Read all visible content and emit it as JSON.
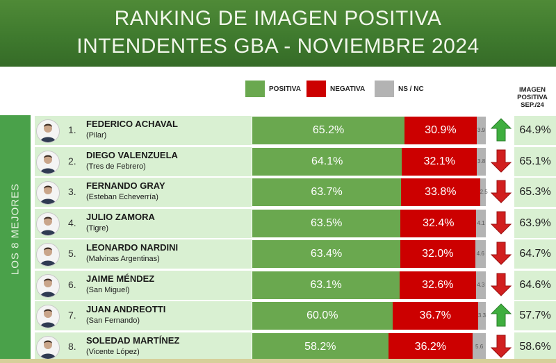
{
  "header": {
    "title_line1": "RANKING DE IMAGEN POSITIVA",
    "title_line2": "INTENDENTES GBA - NOVIEMBRE 2024"
  },
  "legend": {
    "positiva": "POSITIVA",
    "negativa": "NEGATIVA",
    "nsnc": "NS / NC"
  },
  "prev_header": [
    "IMAGEN",
    "POSITIVA",
    "SEP./24"
  ],
  "sidebar_label": "LOS 8 MEJORES",
  "colors": {
    "positiva": "#6aa84f",
    "negativa": "#cc0000",
    "nsnc": "#b3b3b3",
    "up_arrow": "#3fae3f",
    "down_arrow": "#d11f1f",
    "header_green": "#3f7a2e",
    "sidebar_green": "#4aa14a",
    "row_bg": "#d9f0d2"
  },
  "chart_data": {
    "type": "bar",
    "stacked": true,
    "orientation": "horizontal",
    "title": "RANKING DE IMAGEN POSITIVA INTENDENTES GBA - NOVIEMBRE 2024",
    "xlim": [
      0,
      100
    ],
    "legend": [
      "POSITIVA",
      "NEGATIVA",
      "NS / NC"
    ],
    "categories": [
      "FEDERICO ACHAVAL",
      "DIEGO VALENZUELA",
      "FERNANDO GRAY",
      "JULIO ZAMORA",
      "LEONARDO NARDINI",
      "JAIME MÉNDEZ",
      "JUAN ANDREOTTI",
      "SOLEDAD MARTÍNEZ"
    ],
    "series": [
      {
        "name": "POSITIVA",
        "values": [
          65.2,
          64.1,
          63.7,
          63.5,
          63.4,
          63.1,
          60.0,
          58.2
        ]
      },
      {
        "name": "NEGATIVA",
        "values": [
          30.9,
          32.1,
          33.8,
          32.4,
          32.0,
          32.6,
          36.7,
          36.2
        ]
      },
      {
        "name": "NS / NC",
        "values": [
          3.9,
          3.8,
          2.5,
          4.1,
          4.6,
          4.3,
          3.3,
          5.6
        ]
      }
    ],
    "prev_column_label": "IMAGEN POSITIVA SEP./24",
    "rows": [
      {
        "rank": "1.",
        "name": "FEDERICO ACHAVAL",
        "district": "(Pilar)",
        "pos": 65.2,
        "neg": 30.9,
        "ns": 3.9,
        "pos_label": "65.2%",
        "neg_label": "30.9%",
        "ns_label": "3.9",
        "trend": "up",
        "prev": "64.9%"
      },
      {
        "rank": "2.",
        "name": "DIEGO VALENZUELA",
        "district": "(Tres de Febrero)",
        "pos": 64.1,
        "neg": 32.1,
        "ns": 3.8,
        "pos_label": "64.1%",
        "neg_label": "32.1%",
        "ns_label": "3.8",
        "trend": "down",
        "prev": "65.1%"
      },
      {
        "rank": "3.",
        "name": "FERNANDO GRAY",
        "district": "(Esteban Echeverría)",
        "pos": 63.7,
        "neg": 33.8,
        "ns": 2.5,
        "pos_label": "63.7%",
        "neg_label": "33.8%",
        "ns_label": "2.5",
        "trend": "down",
        "prev": "65.3%"
      },
      {
        "rank": "4.",
        "name": "JULIO ZAMORA",
        "district": "(Tigre)",
        "pos": 63.5,
        "neg": 32.4,
        "ns": 4.1,
        "pos_label": "63.5%",
        "neg_label": "32.4%",
        "ns_label": "4.1",
        "trend": "down",
        "prev": "63.9%"
      },
      {
        "rank": "5.",
        "name": "LEONARDO NARDINI",
        "district": "(Malvinas Argentinas)",
        "pos": 63.4,
        "neg": 32.0,
        "ns": 4.6,
        "pos_label": "63.4%",
        "neg_label": "32.0%",
        "ns_label": "4.6",
        "trend": "down",
        "prev": "64.7%"
      },
      {
        "rank": "6.",
        "name": "JAIME MÉNDEZ",
        "district": "(San Miguel)",
        "pos": 63.1,
        "neg": 32.6,
        "ns": 4.3,
        "pos_label": "63.1%",
        "neg_label": "32.6%",
        "ns_label": "4.3",
        "trend": "down",
        "prev": "64.6%"
      },
      {
        "rank": "7.",
        "name": "JUAN ANDREOTTI",
        "district": "(San Fernando)",
        "pos": 60.0,
        "neg": 36.7,
        "ns": 3.3,
        "pos_label": "60.0%",
        "neg_label": "36.7%",
        "ns_label": "3.3",
        "trend": "up",
        "prev": "57.7%"
      },
      {
        "rank": "8.",
        "name": "SOLEDAD MARTÍNEZ",
        "district": "(Vicente López)",
        "pos": 58.2,
        "neg": 36.2,
        "ns": 5.6,
        "pos_label": "58.2%",
        "neg_label": "36.2%",
        "ns_label": "5.6",
        "trend": "down",
        "prev": "58.6%"
      }
    ]
  }
}
